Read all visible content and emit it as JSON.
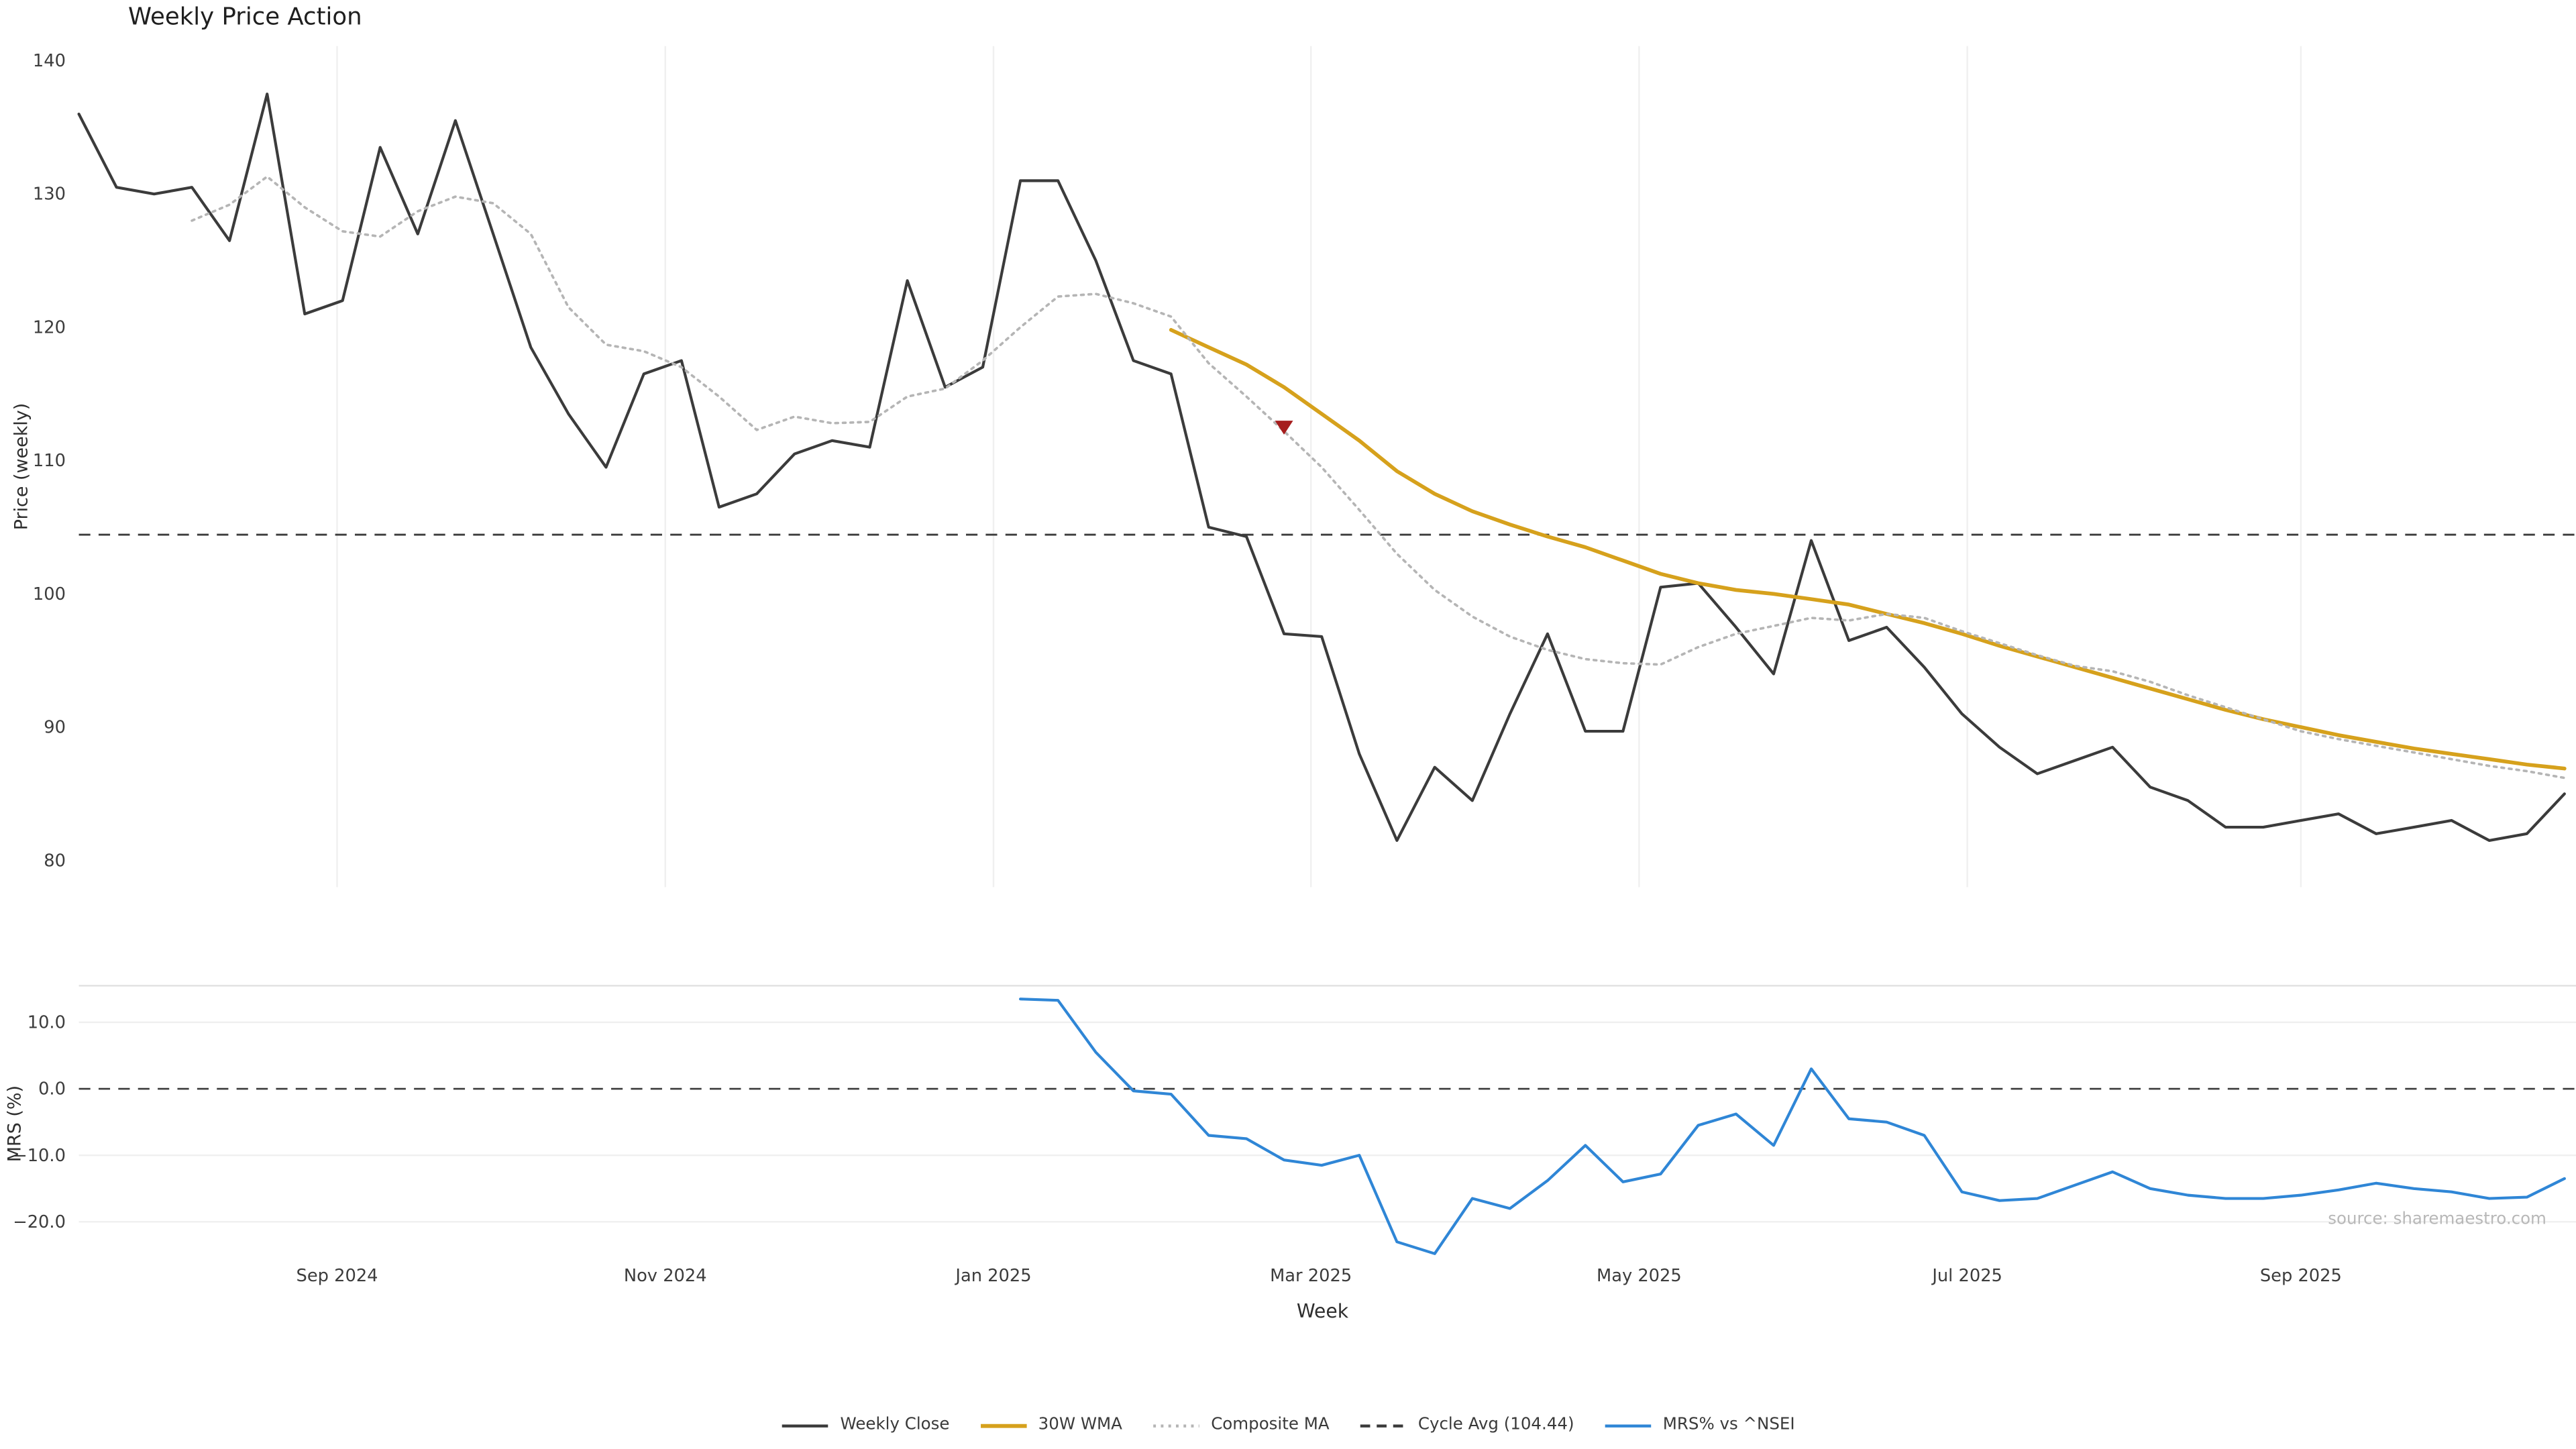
{
  "chart_data": {
    "type": "line",
    "title": "Weekly Price Action",
    "xlabel": "Week",
    "source": "source: sharemaestro.com",
    "x_weeks": [
      "2024-07-15",
      "2024-07-22",
      "2024-07-29",
      "2024-08-05",
      "2024-08-12",
      "2024-08-19",
      "2024-08-26",
      "2024-09-02",
      "2024-09-09",
      "2024-09-16",
      "2024-09-23",
      "2024-09-30",
      "2024-10-07",
      "2024-10-14",
      "2024-10-21",
      "2024-10-28",
      "2024-11-04",
      "2024-11-11",
      "2024-11-18",
      "2024-11-25",
      "2024-12-02",
      "2024-12-09",
      "2024-12-16",
      "2024-12-23",
      "2024-12-30",
      "2025-01-06",
      "2025-01-13",
      "2025-01-20",
      "2025-01-27",
      "2025-02-03",
      "2025-02-10",
      "2025-02-17",
      "2025-02-24",
      "2025-03-03",
      "2025-03-10",
      "2025-03-17",
      "2025-03-24",
      "2025-03-31",
      "2025-04-07",
      "2025-04-14",
      "2025-04-21",
      "2025-04-28",
      "2025-05-05",
      "2025-05-12",
      "2025-05-19",
      "2025-05-26",
      "2025-06-02",
      "2025-06-09",
      "2025-06-16",
      "2025-06-23",
      "2025-06-30",
      "2025-07-07",
      "2025-07-14",
      "2025-07-21",
      "2025-07-28",
      "2025-08-04",
      "2025-08-11",
      "2025-08-18",
      "2025-08-25",
      "2025-09-01",
      "2025-09-08",
      "2025-09-15",
      "2025-09-22",
      "2025-09-29",
      "2025-10-06",
      "2025-10-13",
      "2025-10-20"
    ],
    "x_ticks": [
      {
        "label": "Sep 2024",
        "date": "2024-09-01"
      },
      {
        "label": "Nov 2024",
        "date": "2024-11-01"
      },
      {
        "label": "Jan 2025",
        "date": "2025-01-01"
      },
      {
        "label": "Mar 2025",
        "date": "2025-03-01"
      },
      {
        "label": "May 2025",
        "date": "2025-05-01"
      },
      {
        "label": "Jul 2025",
        "date": "2025-07-01"
      },
      {
        "label": "Sep 2025",
        "date": "2025-09-01"
      }
    ],
    "price_panel": {
      "ylabel": "Price (weekly)",
      "ylim": [
        78,
        141.1
      ],
      "yticks": [
        {
          "label": "140",
          "value": 140
        },
        {
          "label": "130",
          "value": 130
        },
        {
          "label": "120",
          "value": 120
        },
        {
          "label": "110",
          "value": 110
        },
        {
          "label": "100",
          "value": 100
        },
        {
          "label": "90",
          "value": 90
        },
        {
          "label": "80",
          "value": 80
        }
      ],
      "cycle_avg": {
        "label": "Cycle Avg (104.44)",
        "value": 104.44,
        "color": "#3b3b3b",
        "style": "dashed"
      },
      "signal_marker": {
        "shape": "triangle-down",
        "date": "2025-02-24",
        "value": 112.5,
        "color": "#a61d1d"
      },
      "series": [
        {
          "name": "Weekly Close",
          "color": "#3b3b3b",
          "style": "solid",
          "start_index": 0,
          "values": [
            136.0,
            130.5,
            130.0,
            130.5,
            126.5,
            137.5,
            121.0,
            122.0,
            133.5,
            127.0,
            135.5,
            127.0,
            118.5,
            113.5,
            109.5,
            116.5,
            117.5,
            106.5,
            107.5,
            110.5,
            111.5,
            111.0,
            123.5,
            115.5,
            117.0,
            131.0,
            131.0,
            125.0,
            117.5,
            116.5,
            105.0,
            104.3,
            97.0,
            96.8,
            88.0,
            81.5,
            87.0,
            84.5,
            91.0,
            97.0,
            89.7,
            89.7,
            100.5,
            100.8,
            97.5,
            94.0,
            104.0,
            96.5,
            97.5,
            94.5,
            91.0,
            88.5,
            86.5,
            87.5,
            88.5,
            85.5,
            84.5,
            82.5,
            82.5,
            83.0,
            83.5,
            82.0,
            82.5,
            83.0,
            81.5,
            82.0,
            85.0
          ]
        },
        {
          "name": "30W WMA",
          "color": "#d6a11c",
          "style": "solid",
          "start_index": 29,
          "values": [
            119.8,
            118.5,
            117.2,
            115.5,
            113.5,
            111.5,
            109.2,
            107.5,
            106.2,
            105.2,
            104.3,
            103.5,
            102.5,
            101.5,
            100.8,
            100.3,
            100.0,
            99.6,
            99.2,
            98.5,
            97.8,
            97.0,
            96.1,
            95.3,
            94.5,
            93.7,
            92.9,
            92.1,
            91.3,
            90.6,
            90.0,
            89.4,
            88.9,
            88.4,
            88.0,
            87.6,
            87.2,
            86.9
          ]
        },
        {
          "name": "Composite MA",
          "color": "#b5b5b5",
          "style": "dotted",
          "start_index": 3,
          "values": [
            128.0,
            129.2,
            131.3,
            129.0,
            127.2,
            126.8,
            128.7,
            129.8,
            129.3,
            127.0,
            121.5,
            118.7,
            118.2,
            117.0,
            114.8,
            112.3,
            113.3,
            112.8,
            112.9,
            114.8,
            115.4,
            117.5,
            120.0,
            122.3,
            122.5,
            121.8,
            120.8,
            117.3,
            114.8,
            112.2,
            109.5,
            106.3,
            103.0,
            100.3,
            98.3,
            96.8,
            95.8,
            95.1,
            94.8,
            94.7,
            96.0,
            97.0,
            97.6,
            98.2,
            98.0,
            98.5,
            98.2,
            97.2,
            96.3,
            95.4,
            94.6,
            94.2,
            93.4,
            92.4,
            91.5,
            90.6,
            89.7,
            89.1,
            88.6,
            88.1,
            87.6,
            87.1,
            86.7,
            86.2
          ]
        }
      ]
    },
    "mrs_panel": {
      "ylabel": "MRS (%)",
      "ylim": [
        -26,
        15.5
      ],
      "yticks": [
        {
          "label": "10.0",
          "value": 10
        },
        {
          "label": "0.0",
          "value": 0
        },
        {
          "label": "−10.0",
          "value": -10
        },
        {
          "label": "−20.0",
          "value": -20
        }
      ],
      "zero_line": {
        "value": 0,
        "color": "#3b3b3b",
        "style": "dashed"
      },
      "series": [
        {
          "name": "MRS% vs ^NSEI",
          "color": "#2f86d6",
          "style": "solid",
          "start_index": 25,
          "values": [
            13.5,
            13.3,
            5.5,
            -0.3,
            -0.8,
            -7.0,
            -7.5,
            -10.7,
            -11.5,
            -10.0,
            -23.0,
            -24.8,
            -16.5,
            -18.0,
            -13.8,
            -8.5,
            -14.0,
            -12.8,
            -5.5,
            -3.8,
            -8.5,
            3.0,
            -4.5,
            -5.0,
            -7.0,
            -15.5,
            -16.8,
            -16.5,
            -14.5,
            -12.5,
            -15.0,
            -16.0,
            -16.5,
            -16.5,
            -16.0,
            -15.2,
            -14.2,
            -15.0,
            -15.5,
            -16.5,
            -16.3,
            -13.5
          ]
        }
      ]
    },
    "legend": [
      {
        "label": "Weekly Close",
        "color": "#3b3b3b",
        "style": "solid"
      },
      {
        "label": "30W WMA",
        "color": "#d6a11c",
        "style": "solid"
      },
      {
        "label": "Composite MA",
        "color": "#b5b5b5",
        "style": "dotted"
      },
      {
        "label": "Cycle Avg (104.44)",
        "color": "#3b3b3b",
        "style": "dashed"
      },
      {
        "label": "MRS% vs ^NSEI",
        "color": "#2f86d6",
        "style": "solid"
      }
    ],
    "grid_color": "#f0f0f0"
  }
}
